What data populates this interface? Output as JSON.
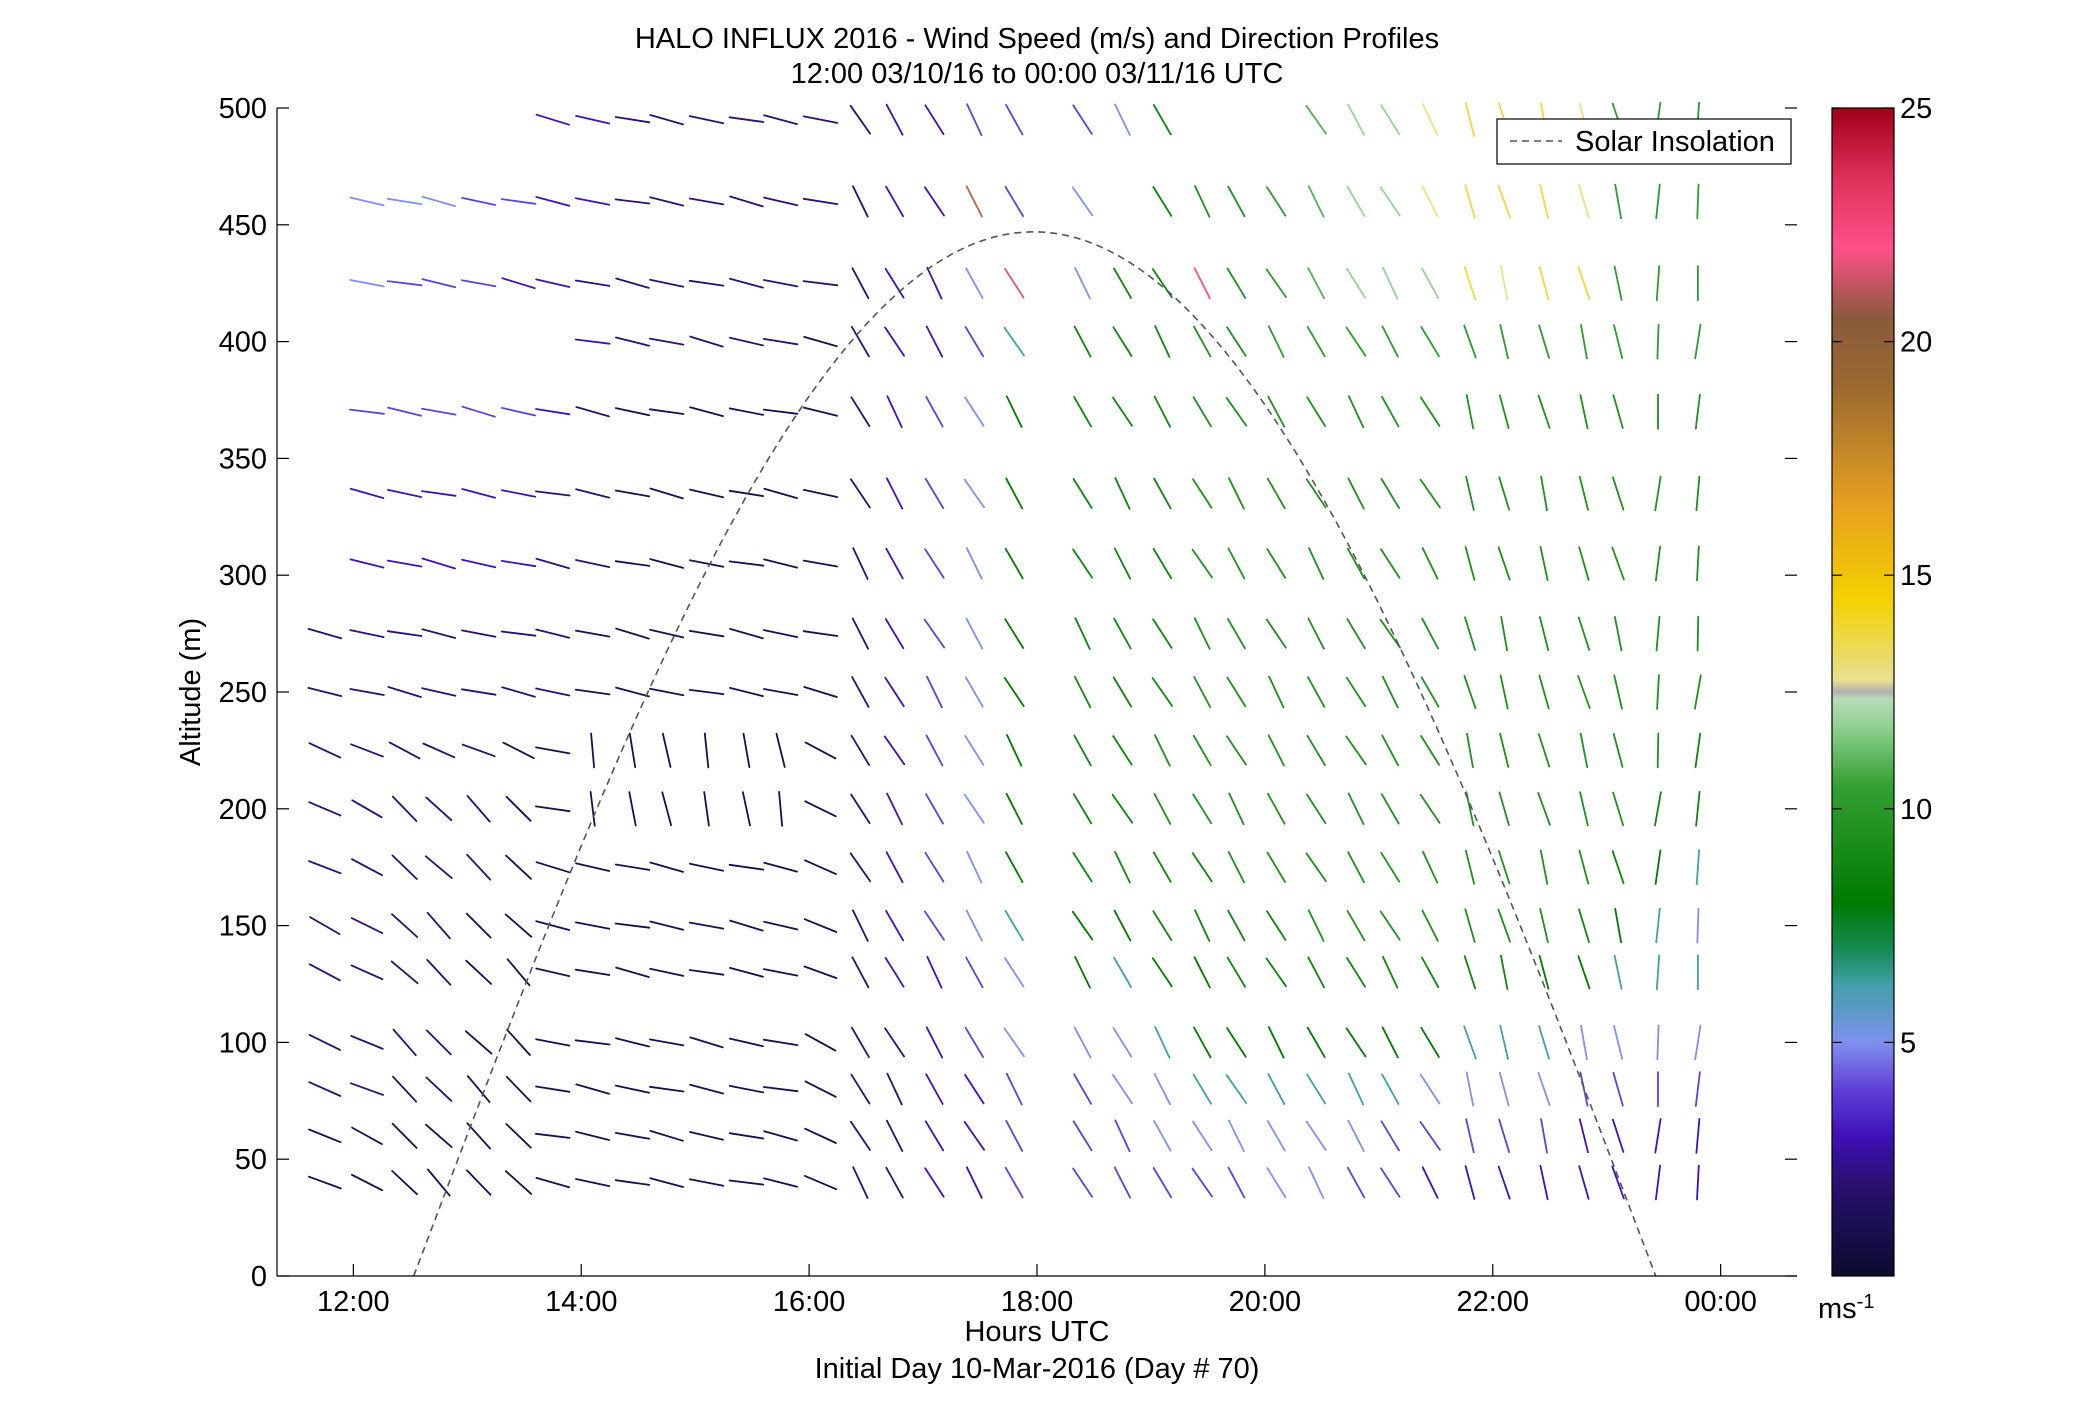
{
  "chart_data": {
    "type": "quiver",
    "title": "HALO INFLUX 2016 - Wind Speed (m/s) and Direction Profiles",
    "subtitle": "12:00 03/10/16 to 00:00 03/11/16  UTC",
    "xlabel": "Hours UTC",
    "xlabel2": "Initial Day 10-Mar-2016 (Day # 70)",
    "ylabel": "Altitude (m)",
    "xlim": [
      11.33,
      24.67
    ],
    "ylim": [
      0,
      500
    ],
    "x_tick_values": [
      12,
      14,
      16,
      18,
      20,
      22,
      24
    ],
    "x_tick_labels": [
      "12:00",
      "14:00",
      "16:00",
      "18:00",
      "20:00",
      "22:00",
      "00:00"
    ],
    "y_ticks": [
      0,
      50,
      100,
      150,
      200,
      250,
      300,
      350,
      400,
      450,
      500
    ],
    "colorbar": {
      "label": "ms-1",
      "range": [
        0,
        25
      ],
      "ticks": [
        5,
        10,
        15,
        20,
        25
      ]
    },
    "legend": {
      "entries": [
        "Solar Insolation"
      ],
      "placement": "top-right"
    },
    "solar_insolation": {
      "start_hour": 12.53,
      "peak_hour": 17.97,
      "end_hour": 23.43,
      "peak_altitude": 447
    },
    "time_hours": [
      11.75,
      12.12,
      12.45,
      12.75,
      13.1,
      13.45,
      13.75,
      14.1,
      14.45,
      14.75,
      15.1,
      15.45,
      15.75,
      16.1,
      16.45,
      16.75,
      17.1,
      17.45,
      17.8,
      18.4,
      18.75,
      19.1,
      19.45,
      19.75,
      20.1,
      20.45,
      20.8,
      21.1,
      21.45,
      21.8,
      22.1,
      22.45,
      22.8,
      23.1,
      23.45,
      23.8
    ],
    "altitudes": [
      40,
      60,
      80,
      100,
      130,
      150,
      175,
      200,
      225,
      250,
      275,
      305,
      335,
      370,
      400,
      425,
      460,
      495
    ],
    "speed_grid": [
      [
        1,
        1,
        1,
        1,
        1,
        1,
        1,
        1,
        1,
        1,
        1,
        1,
        1,
        1,
        2,
        2,
        3,
        3,
        4,
        4,
        4,
        4,
        4,
        4,
        5,
        5,
        4,
        4,
        3,
        3,
        3,
        3,
        3,
        3,
        3,
        3
      ],
      [
        1,
        1,
        1,
        1,
        1,
        1,
        1,
        1,
        1,
        1,
        1,
        1,
        1,
        1,
        2,
        2,
        3,
        3,
        4,
        4,
        4,
        5,
        5,
        5,
        5,
        5,
        5,
        4,
        4,
        4,
        4,
        4,
        3,
        3,
        3,
        3
      ],
      [
        2,
        2,
        2,
        2,
        1,
        1,
        1,
        1,
        1,
        1,
        1,
        1,
        1,
        1,
        2,
        2,
        3,
        3,
        4,
        4,
        5,
        5,
        6,
        6,
        6,
        6,
        6,
        6,
        5,
        5,
        5,
        5,
        4,
        4,
        4,
        4
      ],
      [
        2,
        2,
        2,
        2,
        1,
        1,
        1,
        1,
        1,
        1,
        1,
        1,
        1,
        1,
        2,
        2,
        3,
        4,
        5,
        5,
        5,
        6,
        7,
        7,
        7,
        7,
        7,
        7,
        7,
        6,
        6,
        6,
        5,
        5,
        5,
        5
      ],
      [
        2,
        2,
        2,
        2,
        1,
        1,
        1,
        1,
        1,
        1,
        1,
        1,
        1,
        1,
        2,
        3,
        3,
        4,
        5,
        7,
        6,
        7,
        7,
        8,
        8,
        8,
        8,
        8,
        8,
        8,
        8,
        7,
        7,
        6,
        6,
        6
      ],
      [
        2,
        2,
        2,
        2,
        1,
        1,
        1,
        1,
        1,
        1,
        1,
        1,
        1,
        1,
        2,
        3,
        4,
        5,
        6,
        7,
        7,
        8,
        8,
        8,
        8,
        9,
        9,
        9,
        9,
        9,
        9,
        9,
        8,
        7,
        6,
        5
      ],
      [
        2,
        2,
        2,
        2,
        2,
        1,
        1,
        1,
        1,
        1,
        1,
        1,
        1,
        1,
        2,
        3,
        4,
        5,
        7,
        8,
        8,
        8,
        8,
        9,
        9,
        9,
        9,
        9,
        9,
        9,
        9,
        9,
        9,
        8,
        7,
        6
      ],
      [
        2,
        2,
        2,
        2,
        2,
        1,
        1,
        1,
        1,
        1,
        1,
        1,
        1,
        1,
        2,
        3,
        4,
        5,
        7,
        8,
        8,
        9,
        9,
        9,
        9,
        9,
        9,
        9,
        9,
        9,
        9,
        9,
        9,
        9,
        8,
        8
      ],
      [
        2,
        2,
        2,
        2,
        2,
        1,
        1,
        1,
        1,
        1,
        1,
        1,
        1,
        1,
        2,
        3,
        4,
        5,
        7,
        8,
        8,
        9,
        9,
        9,
        9,
        9,
        9,
        9,
        9,
        9,
        9,
        9,
        9,
        9,
        9,
        8
      ],
      [
        2,
        2,
        2,
        2,
        2,
        2,
        2,
        1,
        1,
        1,
        1,
        1,
        1,
        1,
        2,
        3,
        4,
        5,
        7,
        8,
        8,
        8,
        9,
        9,
        9,
        9,
        9,
        9,
        9,
        9,
        9,
        9,
        9,
        9,
        9,
        9
      ],
      [
        2,
        2,
        2,
        2,
        2,
        2,
        2,
        1,
        1,
        1,
        1,
        1,
        1,
        1,
        2,
        3,
        4,
        5,
        7,
        8,
        8,
        8,
        9,
        9,
        9,
        9,
        9,
        9,
        9,
        9,
        9,
        9,
        9,
        9,
        9,
        9
      ],
      [
        3,
        3,
        3,
        3,
        3,
        3,
        2,
        2,
        1,
        1,
        1,
        1,
        1,
        1,
        2,
        3,
        4,
        5,
        7,
        8,
        8,
        8,
        9,
        9,
        9,
        9,
        9,
        9,
        9,
        9,
        9,
        9,
        9,
        9,
        9,
        9
      ],
      [
        3,
        3,
        3,
        3,
        3,
        3,
        2,
        2,
        1,
        1,
        1,
        1,
        1,
        1,
        2,
        3,
        4,
        5,
        7,
        8,
        8,
        8,
        9,
        9,
        9,
        9,
        9,
        9,
        9,
        9,
        9,
        9,
        9,
        9,
        9,
        9
      ],
      [
        4,
        4,
        4,
        4,
        4,
        4,
        3,
        2,
        1,
        1,
        1,
        1,
        1,
        1,
        2,
        3,
        4,
        5,
        7,
        8,
        8,
        8,
        9,
        9,
        9,
        9,
        9,
        9,
        9,
        9,
        9,
        9,
        9,
        9,
        9,
        9
      ],
      [
        4,
        4,
        4,
        4,
        3,
        3,
        3,
        3,
        2,
        2,
        2,
        2,
        2,
        1,
        2,
        3,
        3,
        4,
        6,
        8,
        8,
        8,
        9,
        9,
        10,
        10,
        10,
        10,
        10,
        10,
        10,
        10,
        10,
        10,
        10,
        10
      ],
      [
        5,
        5,
        4,
        4,
        4,
        3,
        3,
        2,
        2,
        2,
        2,
        2,
        2,
        2,
        2,
        3,
        3,
        5,
        21,
        5,
        8,
        8,
        22,
        9,
        10,
        11,
        12,
        12,
        12,
        14,
        13,
        14,
        14,
        10,
        10,
        10
      ],
      [
        5,
        5,
        5,
        5,
        4,
        4,
        3,
        3,
        2,
        2,
        2,
        2,
        2,
        2,
        2,
        3,
        3,
        20,
        4,
        5,
        6,
        8,
        9,
        9,
        10,
        11,
        12,
        12,
        13,
        14,
        14,
        14,
        13,
        10,
        10,
        10
      ],
      [
        5,
        5,
        5,
        5,
        4,
        4,
        3,
        3,
        2,
        2,
        2,
        2,
        2,
        2,
        2,
        3,
        3,
        4,
        4,
        4,
        5,
        8,
        9,
        9,
        10,
        11,
        12,
        12,
        13,
        14,
        14,
        14,
        13,
        10,
        10,
        10
      ]
    ]
  }
}
